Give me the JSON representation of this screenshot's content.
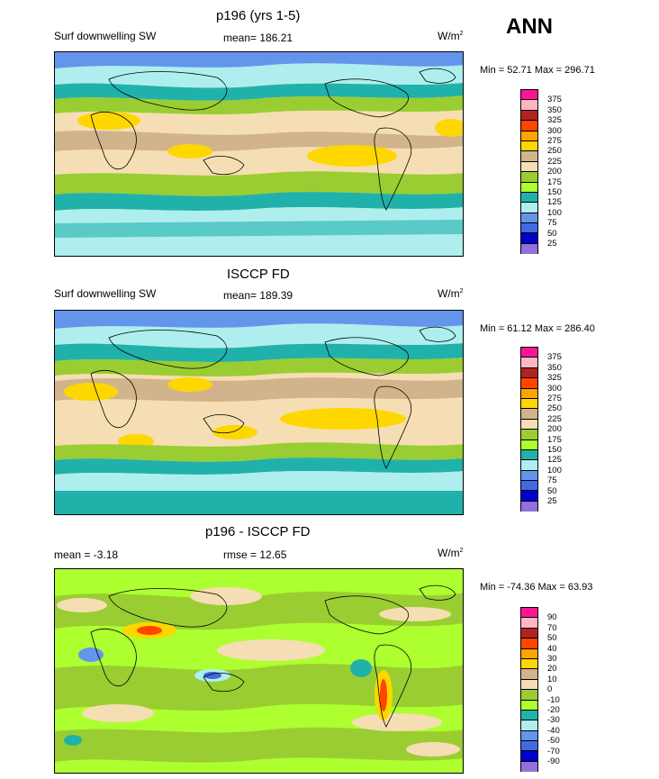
{
  "season": "ANN",
  "panels": [
    {
      "title": "p196 (yrs 1-5)",
      "left_label": "Surf downwelling SW",
      "mean_label": "mean= 186.21",
      "units_base": "W/m",
      "units_sup": "2",
      "minmax": "Min =  52.71 Max = 296.71",
      "levels": [
        "375",
        "350",
        "325",
        "300",
        "275",
        "250",
        "225",
        "200",
        "175",
        "150",
        "125",
        "100",
        "75",
        "50",
        "25"
      ],
      "colors": [
        "#ff1493",
        "#ffb6c1",
        "#b22222",
        "#ff4500",
        "#ffa500",
        "#ffd700",
        "#d2b48c",
        "#f5deb3",
        "#9acd32",
        "#adff2f",
        "#20b2aa",
        "#afeeee",
        "#6495ed",
        "#4169e1",
        "#0000cd",
        "#9370db"
      ]
    },
    {
      "title": "ISCCP FD",
      "left_label": "Surf downwelling SW",
      "mean_label": "mean= 189.39",
      "units_base": "W/m",
      "units_sup": "2",
      "minmax": "Min =  61.12 Max = 286.40",
      "levels": [
        "375",
        "350",
        "325",
        "300",
        "275",
        "250",
        "225",
        "200",
        "175",
        "150",
        "125",
        "100",
        "75",
        "50",
        "25"
      ],
      "colors": [
        "#ff1493",
        "#ffb6c1",
        "#b22222",
        "#ff4500",
        "#ffa500",
        "#ffd700",
        "#d2b48c",
        "#f5deb3",
        "#9acd32",
        "#adff2f",
        "#20b2aa",
        "#afeeee",
        "#6495ed",
        "#4169e1",
        "#0000cd",
        "#9370db"
      ]
    },
    {
      "title": "p196 - ISCCP FD",
      "left_label": "mean =  -3.18",
      "mean_label": "rmse =  12.65",
      "units_base": "W/m",
      "units_sup": "2",
      "minmax": "Min = -74.36 Max =  63.93",
      "levels": [
        "90",
        "70",
        "50",
        "40",
        "30",
        "20",
        "10",
        "0",
        "-10",
        "-20",
        "-30",
        "-40",
        "-50",
        "-70",
        "-90"
      ],
      "colors": [
        "#ff1493",
        "#ffb6c1",
        "#b22222",
        "#ff4500",
        "#ffa500",
        "#ffd700",
        "#d2b48c",
        "#f5deb3",
        "#9acd32",
        "#adff2f",
        "#20b2aa",
        "#afeeee",
        "#6495ed",
        "#4169e1",
        "#0000cd",
        "#9370db"
      ]
    }
  ]
}
